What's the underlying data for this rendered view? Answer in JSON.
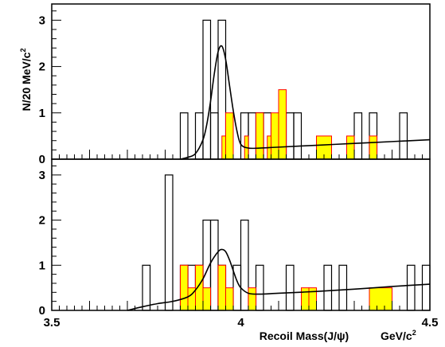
{
  "chart_data": [
    {
      "type": "bar",
      "panel": "top",
      "x_range": [
        3.5,
        4.5
      ],
      "ylim": [
        0,
        3.35
      ],
      "yticks": [
        "0",
        "1",
        "2",
        "3"
      ],
      "ylabel": "N/20 MeV/c",
      "ylabel_sup": "2",
      "series": [
        {
          "name": "",
          "style": "open-outline",
          "color": "#000000",
          "bins": [
            {
              "x0": 3.84,
              "x1": 3.86,
              "y": 1
            },
            {
              "x0": 3.88,
              "x1": 3.9,
              "y": 1
            },
            {
              "x0": 3.9,
              "x1": 3.92,
              "y": 3
            },
            {
              "x0": 3.92,
              "x1": 3.94,
              "y": 1
            },
            {
              "x0": 3.94,
              "x1": 3.96,
              "y": 3
            },
            {
              "x0": 4.0,
              "x1": 4.02,
              "y": 1
            },
            {
              "x0": 4.02,
              "x1": 4.04,
              "y": 1
            },
            {
              "x0": 4.04,
              "x1": 4.06,
              "y": 1
            },
            {
              "x0": 4.06,
              "x1": 4.08,
              "y": 1
            },
            {
              "x0": 4.1,
              "x1": 4.12,
              "y": 1
            },
            {
              "x0": 4.12,
              "x1": 4.14,
              "y": 1
            },
            {
              "x0": 4.14,
              "x1": 4.16,
              "y": 1
            },
            {
              "x0": 4.3,
              "x1": 4.32,
              "y": 1
            },
            {
              "x0": 4.34,
              "x1": 4.36,
              "y": 1
            },
            {
              "x0": 4.42,
              "x1": 4.44,
              "y": 1
            }
          ]
        },
        {
          "name": "",
          "style": "filled",
          "color": "#ffff00",
          "edge_color": "#ff0000",
          "bins": [
            {
              "x0": 3.95,
              "x1": 3.96,
              "y": 0.5
            },
            {
              "x0": 3.96,
              "x1": 3.98,
              "y": 1
            },
            {
              "x0": 4.01,
              "x1": 4.02,
              "y": 0.5
            },
            {
              "x0": 4.04,
              "x1": 4.06,
              "y": 1
            },
            {
              "x0": 4.07,
              "x1": 4.08,
              "y": 0.5
            },
            {
              "x0": 4.08,
              "x1": 4.1,
              "y": 1
            },
            {
              "x0": 4.1,
              "x1": 4.12,
              "y": 1.5
            },
            {
              "x0": 4.2,
              "x1": 4.24,
              "y": 0.5
            },
            {
              "x0": 4.28,
              "x1": 4.3,
              "y": 0.5
            },
            {
              "x0": 4.34,
              "x1": 4.36,
              "y": 0.5
            }
          ]
        }
      ],
      "fit_curve": {
        "color": "#000000",
        "x": [
          3.84,
          3.86,
          3.88,
          3.9,
          3.91,
          3.92,
          3.93,
          3.94,
          3.95,
          3.96,
          3.97,
          3.98,
          3.99,
          4.0,
          4.02,
          4.05,
          4.1,
          4.2,
          4.3,
          4.4,
          4.5
        ],
        "y": [
          0.0,
          0.04,
          0.12,
          0.42,
          0.75,
          1.25,
          1.85,
          2.32,
          2.44,
          2.15,
          1.6,
          1.05,
          0.6,
          0.32,
          0.24,
          0.24,
          0.26,
          0.3,
          0.34,
          0.38,
          0.42
        ]
      }
    },
    {
      "type": "bar",
      "panel": "bottom",
      "x_range": [
        3.5,
        4.5
      ],
      "ylim": [
        0,
        3.35
      ],
      "yticks": [
        "0",
        "1",
        "2",
        "3"
      ],
      "xticks": [
        {
          "value": 3.5,
          "label": "3.5"
        },
        {
          "value": 4.0,
          "label": "4"
        },
        {
          "value": 4.5,
          "label": "4.5"
        }
      ],
      "xlabel": "Recoil Mass(J/ψ)",
      "xunit": "GeV/c",
      "xunit_sup": "2",
      "series": [
        {
          "name": "",
          "style": "open-outline",
          "color": "#000000",
          "bins": [
            {
              "x0": 3.74,
              "x1": 3.76,
              "y": 1
            },
            {
              "x0": 3.8,
              "x1": 3.82,
              "y": 3
            },
            {
              "x0": 3.84,
              "x1": 3.86,
              "y": 1
            },
            {
              "x0": 3.86,
              "x1": 3.88,
              "y": 1
            },
            {
              "x0": 3.88,
              "x1": 3.9,
              "y": 1
            },
            {
              "x0": 3.9,
              "x1": 3.92,
              "y": 2
            },
            {
              "x0": 3.92,
              "x1": 3.94,
              "y": 2
            },
            {
              "x0": 3.94,
              "x1": 3.96,
              "y": 1
            },
            {
              "x0": 3.98,
              "x1": 4.0,
              "y": 1
            },
            {
              "x0": 4.0,
              "x1": 4.02,
              "y": 2
            },
            {
              "x0": 4.04,
              "x1": 4.06,
              "y": 1
            },
            {
              "x0": 4.12,
              "x1": 4.14,
              "y": 1
            },
            {
              "x0": 4.22,
              "x1": 4.24,
              "y": 1
            },
            {
              "x0": 4.26,
              "x1": 4.28,
              "y": 1
            },
            {
              "x0": 4.44,
              "x1": 4.46,
              "y": 1
            },
            {
              "x0": 4.48,
              "x1": 4.5,
              "y": 1
            }
          ]
        },
        {
          "name": "",
          "style": "filled",
          "color": "#ffff00",
          "edge_color": "#ff0000",
          "bins": [
            {
              "x0": 3.84,
              "x1": 3.86,
              "y": 1
            },
            {
              "x0": 3.86,
              "x1": 3.88,
              "y": 0.5
            },
            {
              "x0": 3.88,
              "x1": 3.9,
              "y": 1
            },
            {
              "x0": 3.9,
              "x1": 3.92,
              "y": 0.5
            },
            {
              "x0": 3.94,
              "x1": 3.96,
              "y": 1
            },
            {
              "x0": 3.96,
              "x1": 3.98,
              "y": 0.5
            },
            {
              "x0": 4.02,
              "x1": 4.04,
              "y": 0.5
            },
            {
              "x0": 4.16,
              "x1": 4.18,
              "y": 0.5
            },
            {
              "x0": 4.18,
              "x1": 4.2,
              "y": 0.5
            },
            {
              "x0": 4.34,
              "x1": 4.4,
              "y": 0.5
            }
          ]
        }
      ],
      "fit_curve": {
        "color": "#000000",
        "x": [
          3.7,
          3.74,
          3.78,
          3.82,
          3.86,
          3.88,
          3.9,
          3.92,
          3.94,
          3.95,
          3.96,
          3.97,
          3.98,
          3.99,
          4.0,
          4.02,
          4.05,
          4.1,
          4.2,
          4.3,
          4.4,
          4.5
        ],
        "y": [
          0.0,
          0.08,
          0.15,
          0.2,
          0.3,
          0.45,
          0.7,
          1.05,
          1.3,
          1.35,
          1.3,
          1.12,
          0.88,
          0.65,
          0.5,
          0.38,
          0.36,
          0.38,
          0.42,
          0.47,
          0.53,
          0.58
        ]
      }
    }
  ]
}
